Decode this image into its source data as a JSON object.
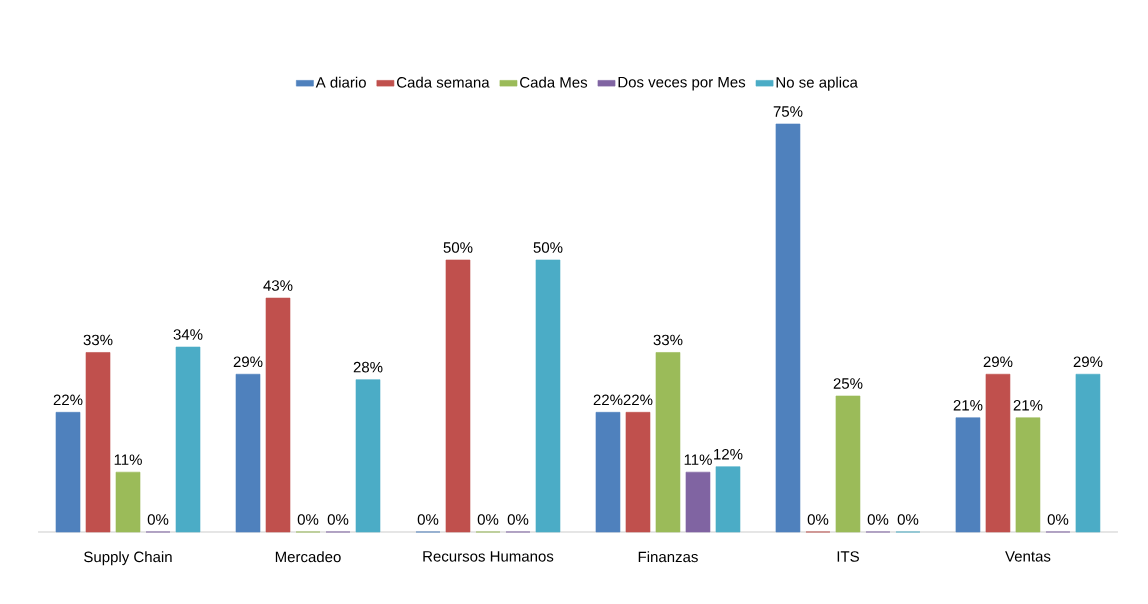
{
  "chart_data": {
    "type": "bar",
    "categories": [
      "Supply Chain",
      "Mercadeo",
      "Recursos Humanos",
      "Finanzas",
      "ITS",
      "Ventas"
    ],
    "legend": "top",
    "series": [
      {
        "name": "A diario",
        "color": "#4f81bd",
        "values": [
          22,
          29,
          0,
          22,
          75,
          21
        ],
        "value_labels": [
          "22%",
          "29%",
          "0%",
          "22%",
          "75%",
          "21%"
        ]
      },
      {
        "name": "Cada semana",
        "color": "#c0504d",
        "values": [
          33,
          43,
          50,
          22,
          0,
          29
        ],
        "value_labels": [
          "33%",
          "43%",
          "50%",
          "22%",
          "0%",
          "29%"
        ]
      },
      {
        "name": "Cada Mes",
        "color": "#9bbb59",
        "values": [
          11,
          0,
          0,
          33,
          25,
          21
        ],
        "value_labels": [
          "11%",
          "0%",
          "0%",
          "33%",
          "25%",
          "21%"
        ]
      },
      {
        "name": "Dos veces por Mes",
        "color": "#8064a2",
        "values": [
          0,
          0,
          0,
          11,
          0,
          0
        ],
        "value_labels": [
          "0%",
          "0%",
          "0%",
          "11%",
          "0%",
          "0%"
        ]
      },
      {
        "name": "No se aplica",
        "color": "#4bacc6",
        "values": [
          34,
          28,
          50,
          12,
          0,
          29
        ],
        "value_labels": [
          "34%",
          "28%",
          "50%",
          "12%",
          "0%",
          "29%"
        ]
      }
    ]
  }
}
